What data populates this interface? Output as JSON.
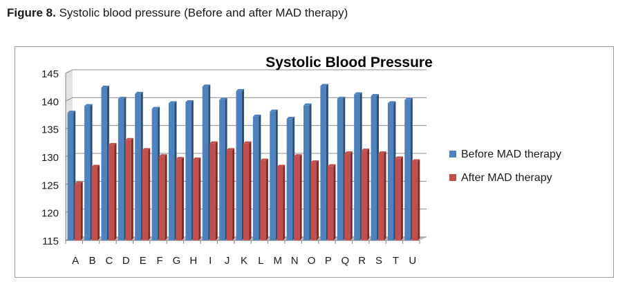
{
  "caption": {
    "label": "Figure 8.",
    "text": "Systolic blood pressure (Before and after MAD therapy)"
  },
  "colors": {
    "before": "#4f81bd",
    "before_dark": "#2c4d75",
    "after": "#c0504d",
    "after_dark": "#7f2a28",
    "axis": "#808080",
    "grid": "#8c8c8c",
    "wall": "#e3e3e3"
  },
  "chart_data": {
    "type": "bar",
    "title": "Systolic Blood Pressure",
    "xlabel": "",
    "ylabel": "",
    "ylim": [
      115,
      145
    ],
    "yticks": [
      115,
      120,
      125,
      130,
      135,
      140,
      145
    ],
    "grid": true,
    "legend_position": "right",
    "categories": [
      "A",
      "B",
      "C",
      "D",
      "E",
      "F",
      "G",
      "H",
      "I",
      "J",
      "K",
      "L",
      "M",
      "N",
      "O",
      "P",
      "Q",
      "R",
      "S",
      "T",
      "U"
    ],
    "series": [
      {
        "name": "Before MAD therapy",
        "color": "#4f81bd",
        "values": [
          137.9,
          139.1,
          142.4,
          140.4,
          141.3,
          138.6,
          139.6,
          139.8,
          142.6,
          140.2,
          141.8,
          137.2,
          138.1,
          136.8,
          139.2,
          142.7,
          140.4,
          141.2,
          140.9,
          139.6,
          140.2
        ]
      },
      {
        "name": "After MAD therapy",
        "color": "#c0504d",
        "values": [
          125.2,
          128.2,
          132.1,
          133.0,
          131.2,
          130.1,
          129.6,
          129.5,
          132.4,
          131.2,
          132.4,
          129.3,
          128.2,
          130.1,
          129.0,
          128.3,
          130.6,
          131.1,
          130.6,
          129.7,
          129.2
        ]
      }
    ]
  }
}
